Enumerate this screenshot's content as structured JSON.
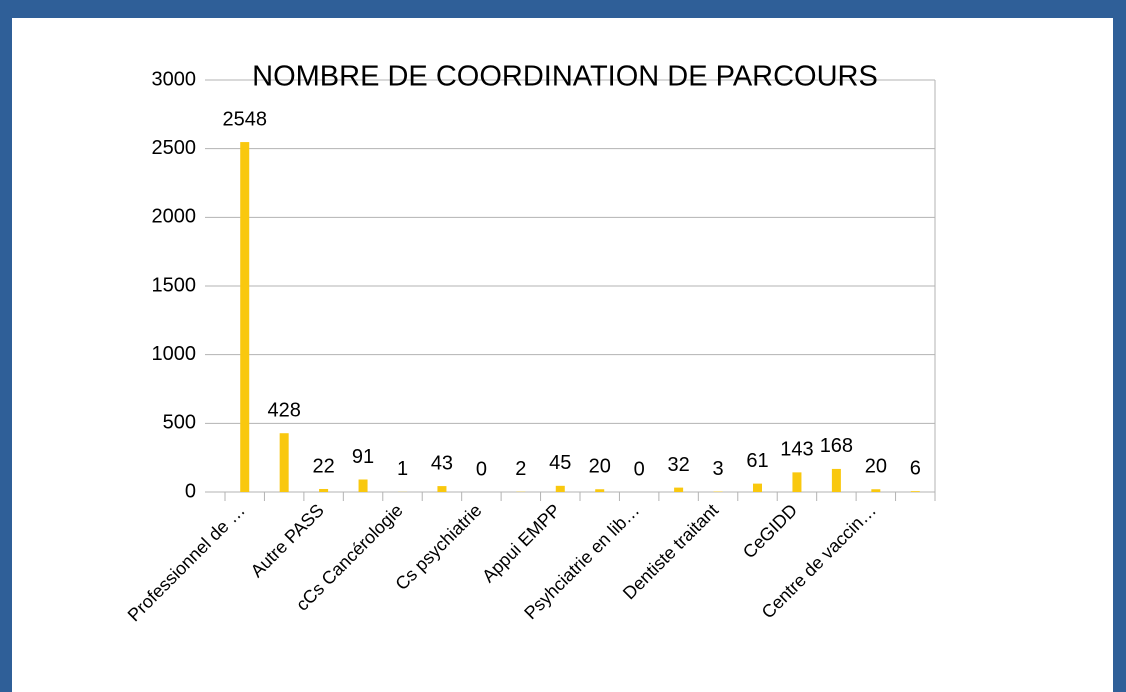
{
  "chart_data": {
    "type": "bar",
    "title": "NOMBRE DE COORDINATION DE PARCOURS",
    "categories": [
      "Professionnel de …",
      null,
      "Autre PASS",
      null,
      "cCs Cancérologie",
      null,
      "Cs psychiatrie",
      null,
      "Appui EMPP",
      null,
      "Psyhciatrie en lib…",
      null,
      "Dentiste traitant",
      null,
      "CeGIDD",
      null,
      "Centre de vaccin…",
      null
    ],
    "values": [
      2548,
      428,
      22,
      91,
      1,
      43,
      0,
      2,
      45,
      20,
      0,
      32,
      3,
      61,
      143,
      168,
      20,
      6
    ],
    "color": "#f9c80e",
    "ylim": [
      0,
      3000
    ],
    "yticks": [
      0,
      500,
      1000,
      1500,
      2000,
      2500,
      3000
    ],
    "grid": true
  }
}
